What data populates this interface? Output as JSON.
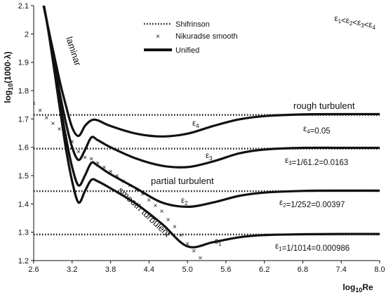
{
  "chart_data": {
    "type": "line",
    "xlabel": "log10Re",
    "ylabel": "log10(1000·λ)",
    "xlim": [
      2.6,
      8.0
    ],
    "ylim": [
      1.2,
      2.1
    ],
    "x_ticks": [
      "2.6",
      "3.2",
      "3.8",
      "4.4",
      "5.0",
      "5.6",
      "6.2",
      "6.8",
      "7.4",
      "8.0"
    ],
    "y_ticks": [
      "1.2",
      "1.3",
      "1.4",
      "1.5",
      "1.6",
      "1.7",
      "1.8",
      "1.9",
      "2",
      "2.1"
    ],
    "grid": false,
    "legend_position": "top-center",
    "legend": [
      {
        "label": "Shifrinson",
        "style": "dotted"
      },
      {
        "label": "Nikuradse smooth",
        "style": "markers"
      },
      {
        "label": "Unified",
        "style": "thick"
      }
    ],
    "series": [
      {
        "name": "Shifrinson",
        "style": "dotted",
        "lines": [
          {
            "x": [
              2.6,
              8.0
            ],
            "y": [
              1.714,
              1.714
            ]
          },
          {
            "x": [
              2.6,
              8.0
            ],
            "y": [
              1.595,
              1.595
            ]
          },
          {
            "x": [
              2.6,
              8.0
            ],
            "y": [
              1.445,
              1.445
            ]
          },
          {
            "x": [
              2.6,
              8.0
            ],
            "y": [
              1.292,
              1.292
            ]
          }
        ]
      },
      {
        "name": "Nikuradse smooth",
        "style": "markers",
        "x": [
          2.6,
          2.7,
          2.8,
          2.9,
          3.0,
          3.1,
          3.2,
          3.3,
          3.4,
          3.5,
          3.6,
          3.7,
          3.8,
          3.9,
          4.0,
          4.1,
          4.2,
          4.3,
          4.4,
          4.5,
          4.6,
          4.7,
          4.8,
          4.9,
          5.0,
          5.1,
          5.2
        ],
        "y": [
          1.755,
          1.73,
          1.705,
          1.685,
          1.665,
          1.64,
          1.62,
          1.585,
          1.565,
          1.56,
          1.545,
          1.53,
          1.515,
          1.5,
          1.48,
          1.465,
          1.45,
          1.435,
          1.415,
          1.395,
          1.375,
          1.345,
          1.32,
          1.29,
          1.26,
          1.235,
          1.21
        ]
      },
      {
        "name": "Unified",
        "style": "thick",
        "curves": [
          {
            "label": "ε4",
            "x": [
              2.6,
              2.8,
              3.0,
              3.1,
              3.2,
              3.3,
              3.4,
              3.5,
              3.6,
              3.8,
              4.2,
              4.6,
              5.0,
              5.4,
              5.8,
              6.2,
              6.8,
              7.4,
              8.0
            ],
            "y": [
              2.27,
              2.05,
              1.84,
              1.75,
              1.67,
              1.64,
              1.675,
              1.695,
              1.695,
              1.675,
              1.648,
              1.638,
              1.648,
              1.675,
              1.698,
              1.71,
              1.716,
              1.717,
              1.717
            ]
          },
          {
            "label": "ε3",
            "x": [
              2.6,
              2.8,
              3.0,
              3.1,
              3.2,
              3.3,
              3.4,
              3.5,
              3.6,
              3.8,
              4.2,
              4.6,
              5.0,
              5.4,
              5.8,
              6.2,
              6.8,
              7.4,
              8.0
            ],
            "y": [
              2.27,
              2.05,
              1.8,
              1.69,
              1.6,
              1.555,
              1.59,
              1.635,
              1.625,
              1.6,
              1.56,
              1.535,
              1.53,
              1.55,
              1.578,
              1.592,
              1.598,
              1.598,
              1.598
            ]
          },
          {
            "label": "ε2",
            "x": [
              2.6,
              2.8,
              3.0,
              3.1,
              3.2,
              3.3,
              3.4,
              3.5,
              3.6,
              3.8,
              4.2,
              4.6,
              5.0,
              5.4,
              5.8,
              6.2,
              6.8,
              7.4,
              8.0
            ],
            "y": [
              2.27,
              2.05,
              1.77,
              1.64,
              1.53,
              1.465,
              1.5,
              1.545,
              1.535,
              1.505,
              1.455,
              1.405,
              1.39,
              1.405,
              1.428,
              1.44,
              1.446,
              1.447,
              1.447
            ]
          },
          {
            "label": "ε1",
            "x": [
              2.6,
              2.8,
              3.0,
              3.1,
              3.2,
              3.3,
              3.4,
              3.5,
              3.6,
              3.8,
              4.2,
              4.6,
              5.0,
              5.4,
              5.8,
              6.2,
              6.8,
              7.4,
              8.0
            ],
            "y": [
              2.27,
              2.05,
              1.75,
              1.6,
              1.48,
              1.405,
              1.445,
              1.485,
              1.48,
              1.455,
              1.4,
              1.33,
              1.25,
              1.265,
              1.282,
              1.29,
              1.293,
              1.294,
              1.294
            ]
          }
        ]
      }
    ],
    "annotations": {
      "top_right": "ε1<ε2<ε3<ε4",
      "laminar": "laminar",
      "rough_turbulent": "rough turbulent",
      "partial_turbulent": "partial turbulent",
      "smooth_turbulent": "smooth turbulent",
      "eps4": "ε4",
      "eps3": "ε3",
      "eps2": "ε2",
      "eps1": "ε1",
      "eps4_value": "ε4=0.05",
      "eps3_value": "ε3=1/61.2=0.0163",
      "eps2_value": "ε2=1/252=0.00397",
      "eps1_value": "ε1=1/1014=0.000986"
    }
  }
}
